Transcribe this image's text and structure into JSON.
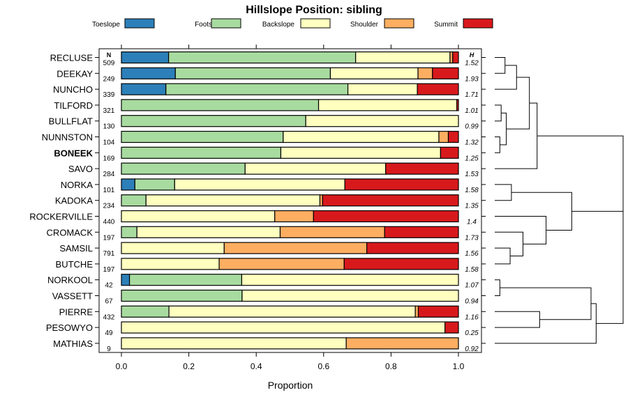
{
  "chart_data": {
    "type": "bar",
    "stacked": true,
    "orientation": "horizontal",
    "title": "Hillslope Position: sibling",
    "xlabel": "Proportion",
    "xlim": [
      0,
      1
    ],
    "xticks": [
      "0.0",
      "0.2",
      "0.4",
      "0.6",
      "0.8",
      "1.0"
    ],
    "n_header": "N",
    "h_header": "H",
    "legend_position": "top",
    "series": [
      {
        "name": "Toeslope",
        "color": "#2c7fb8"
      },
      {
        "name": "Footslope",
        "color": "#a8dba0"
      },
      {
        "name": "Backslope",
        "color": "#ffffbf"
      },
      {
        "name": "Shoulder",
        "color": "#fdae61"
      },
      {
        "name": "Summit",
        "color": "#d7191c"
      }
    ],
    "rows": [
      {
        "label": "RECLUSE",
        "n": "509",
        "h": "1.52",
        "bold": false,
        "values": [
          0.14,
          0.555,
          0.28,
          0.008,
          0.017
        ]
      },
      {
        "label": "DEEKAY",
        "n": "249",
        "h": "1.93",
        "bold": false,
        "values": [
          0.16,
          0.46,
          0.26,
          0.043,
          0.077
        ]
      },
      {
        "label": "NUNCHO",
        "n": "339",
        "h": "1.71",
        "bold": false,
        "values": [
          0.132,
          0.54,
          0.206,
          0.0,
          0.122
        ]
      },
      {
        "label": "TILFORD",
        "n": "321",
        "h": "1.01",
        "bold": false,
        "values": [
          0.0,
          0.585,
          0.41,
          0.0,
          0.005
        ]
      },
      {
        "label": "BULLFLAT",
        "n": "130",
        "h": "0.99",
        "bold": false,
        "values": [
          0.0,
          0.547,
          0.453,
          0.0,
          0.0
        ]
      },
      {
        "label": "NUNNSTON",
        "n": "104",
        "h": "1.32",
        "bold": false,
        "values": [
          0.0,
          0.48,
          0.462,
          0.028,
          0.03
        ]
      },
      {
        "label": "BONEEK",
        "n": "169",
        "h": "1.25",
        "bold": true,
        "values": [
          0.0,
          0.473,
          0.474,
          0.0,
          0.053
        ]
      },
      {
        "label": "SAVO",
        "n": "284",
        "h": "1.53",
        "bold": false,
        "values": [
          0.0,
          0.367,
          0.417,
          0.0,
          0.216
        ]
      },
      {
        "label": "NORKA",
        "n": "101",
        "h": "1.58",
        "bold": false,
        "values": [
          0.04,
          0.118,
          0.505,
          0.0,
          0.337
        ]
      },
      {
        "label": "KADOKA",
        "n": "234",
        "h": "1.35",
        "bold": false,
        "values": [
          0.0,
          0.073,
          0.516,
          0.008,
          0.403
        ]
      },
      {
        "label": "ROCKERVILLE",
        "n": "440",
        "h": "1.4",
        "bold": false,
        "values": [
          0.0,
          0.0,
          0.455,
          0.115,
          0.43
        ]
      },
      {
        "label": "CROMACK",
        "n": "197",
        "h": "1.73",
        "bold": false,
        "values": [
          0.0,
          0.046,
          0.425,
          0.31,
          0.219
        ]
      },
      {
        "label": "SAMSIL",
        "n": "791",
        "h": "1.56",
        "bold": false,
        "values": [
          0.0,
          0.0,
          0.305,
          0.423,
          0.272
        ]
      },
      {
        "label": "BUTCHE",
        "n": "197",
        "h": "1.58",
        "bold": false,
        "values": [
          0.0,
          0.0,
          0.29,
          0.371,
          0.339
        ]
      },
      {
        "label": "NORKOOL",
        "n": "42",
        "h": "1.07",
        "bold": false,
        "values": [
          0.024,
          0.333,
          0.643,
          0.0,
          0.0
        ]
      },
      {
        "label": "VASSETT",
        "n": "67",
        "h": "0.94",
        "bold": false,
        "values": [
          0.0,
          0.358,
          0.642,
          0.0,
          0.0
        ]
      },
      {
        "label": "PIERRE",
        "n": "432",
        "h": "1.16",
        "bold": false,
        "values": [
          0.0,
          0.141,
          0.731,
          0.009,
          0.119
        ]
      },
      {
        "label": "PESOWYO",
        "n": "49",
        "h": "0.25",
        "bold": false,
        "values": [
          0.0,
          0.0,
          0.96,
          0.0,
          0.04
        ]
      },
      {
        "label": "MATHIAS",
        "n": "9",
        "h": "0.92",
        "bold": false,
        "values": [
          0.0,
          0.0,
          0.667,
          0.333,
          0.0
        ]
      }
    ],
    "dendrogram": {
      "description": "hierarchical clustering of rows (right side)",
      "merges": [
        [
          0,
          1,
          0.08
        ],
        [
          2,
          19,
          0.17
        ],
        [
          3,
          4,
          0.05
        ],
        [
          5,
          6,
          0.04
        ],
        [
          21,
          22,
          0.09
        ],
        [
          20,
          23,
          0.27
        ],
        [
          7,
          24,
          0.33
        ],
        [
          8,
          9,
          0.13
        ],
        [
          12,
          13,
          0.12
        ],
        [
          11,
          27,
          0.22
        ],
        [
          10,
          28,
          0.4
        ],
        [
          26,
          29,
          0.6
        ],
        [
          14,
          15,
          0.04
        ],
        [
          16,
          17,
          0.35
        ],
        [
          31,
          32,
          0.75
        ],
        [
          18,
          33,
          0.79
        ],
        [
          25,
          30,
          1.0
        ],
        [
          34,
          35,
          1.0
        ]
      ]
    }
  }
}
